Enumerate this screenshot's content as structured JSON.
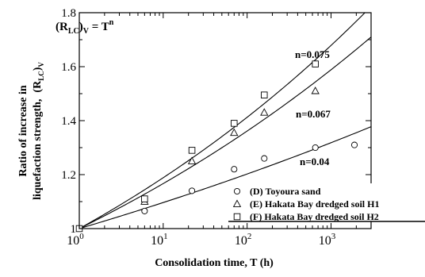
{
  "chart_data": {
    "type": "scatter",
    "xscale": "log",
    "xlim": [
      1,
      3000
    ],
    "ylim": [
      1.0,
      1.8
    ],
    "xlabel": "Consolidation time, T (h)",
    "ylabel_line1": "Ratio of increase in",
    "ylabel_line2": "liquefaction strength,",
    "ylabel_symbol": "(R",
    "ylabel_sub": "LC",
    "ylabel_close": ")",
    "ylabel_subV": "V",
    "formula": {
      "base": "(R",
      "sub": "LC",
      "close": ")",
      "subV": "V",
      "eq": " = T",
      "sup": "n"
    },
    "x_ticks": [
      {
        "value": 1,
        "base": "10",
        "exp": "0"
      },
      {
        "value": 10,
        "base": "10",
        "exp": "1"
      },
      {
        "value": 100,
        "base": "10",
        "exp": "2"
      },
      {
        "value": 1000,
        "base": "10",
        "exp": "3"
      }
    ],
    "y_ticks": [
      "1",
      "1.2",
      "1.4",
      "1.6",
      "1.8"
    ],
    "y_tick_values": [
      1.0,
      1.2,
      1.4,
      1.6,
      1.8
    ],
    "series": [
      {
        "name": "(D) Toyoura sand",
        "marker": "circle",
        "x": [
          1,
          6,
          22,
          70,
          160,
          650,
          1900
        ],
        "y": [
          1.0,
          1.065,
          1.14,
          1.22,
          1.26,
          1.3,
          1.31
        ]
      },
      {
        "name": "(E) Hakata Bay dredged soil H1",
        "marker": "triangle",
        "x": [
          6,
          22,
          70,
          160,
          650
        ],
        "y": [
          1.1,
          1.25,
          1.355,
          1.43,
          1.51
        ]
      },
      {
        "name": "(F) Hakata Bay dredged soil H2",
        "marker": "square",
        "x": [
          1,
          6,
          22,
          70,
          160,
          650
        ],
        "y": [
          1.0,
          1.11,
          1.29,
          1.39,
          1.495,
          1.61
        ]
      }
    ],
    "curves": [
      {
        "label": "n=0.075",
        "n": 0.075
      },
      {
        "label": "n=0.067",
        "n": 0.067
      },
      {
        "label": "n=0.04",
        "n": 0.04
      }
    ]
  }
}
